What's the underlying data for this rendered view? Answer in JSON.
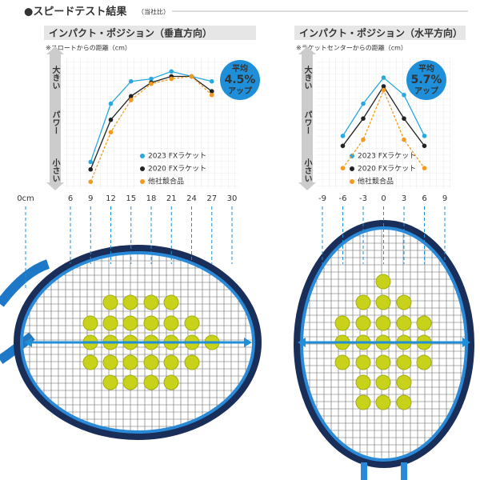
{
  "header": {
    "title": "●スピードテスト結果",
    "note": "（当社比）"
  },
  "chart_data": [
    {
      "type": "line",
      "title": "インパクト・ポジション（垂直方向）",
      "subtitle": "※スロートからの距離（cm）",
      "ylabel": "パワー",
      "ylabel_high": "大きい",
      "ylabel_low": "小さい",
      "x_origin_label": "0cm",
      "annotations": [
        "平均",
        "4.5%",
        "アップ"
      ],
      "xlim": [
        6,
        30
      ],
      "xticks": [
        6,
        9,
        12,
        15,
        18,
        21,
        24,
        27,
        30
      ],
      "ylim": [
        0,
        100
      ],
      "grid": true,
      "x": [
        9,
        12,
        15,
        18,
        21,
        24,
        27
      ],
      "series": [
        {
          "name": "2023 FXラケット",
          "color": "#29a8e0",
          "values": [
            21,
            68,
            86,
            88,
            94,
            90,
            86
          ]
        },
        {
          "name": "2020 FXラケット",
          "color": "#222222",
          "values": [
            15,
            55,
            74,
            85,
            90,
            90,
            78
          ]
        },
        {
          "name": "他社競合品",
          "color": "#f39a1e",
          "dashed": true,
          "values": [
            5,
            45,
            71,
            84,
            88,
            90,
            75
          ]
        }
      ]
    },
    {
      "type": "line",
      "title": "インパクト・ポジション（水平方向）",
      "subtitle": "※ラケットセンターからの距離（cm）",
      "ylabel": "パワー",
      "ylabel_high": "大きい",
      "ylabel_low": "小さい",
      "annotations": [
        "平均",
        "5.7%",
        "アップ"
      ],
      "xlim": [
        -9,
        9
      ],
      "xticks": [
        -9,
        -6,
        -3,
        0,
        3,
        6,
        9
      ],
      "ylim": [
        0,
        100
      ],
      "grid": true,
      "x": [
        -6,
        -3,
        0,
        3,
        6
      ],
      "series": [
        {
          "name": "2023 FXラケット",
          "color": "#29a8e0",
          "values": [
            42,
            68,
            89,
            75,
            42
          ]
        },
        {
          "name": "2020 FXラケット",
          "color": "#222222",
          "values": [
            34,
            56,
            82,
            56,
            34
          ]
        },
        {
          "name": "他社競合品",
          "color": "#f39a1e",
          "dashed": true,
          "values": [
            16,
            39,
            79,
            39,
            16
          ]
        }
      ]
    }
  ]
}
